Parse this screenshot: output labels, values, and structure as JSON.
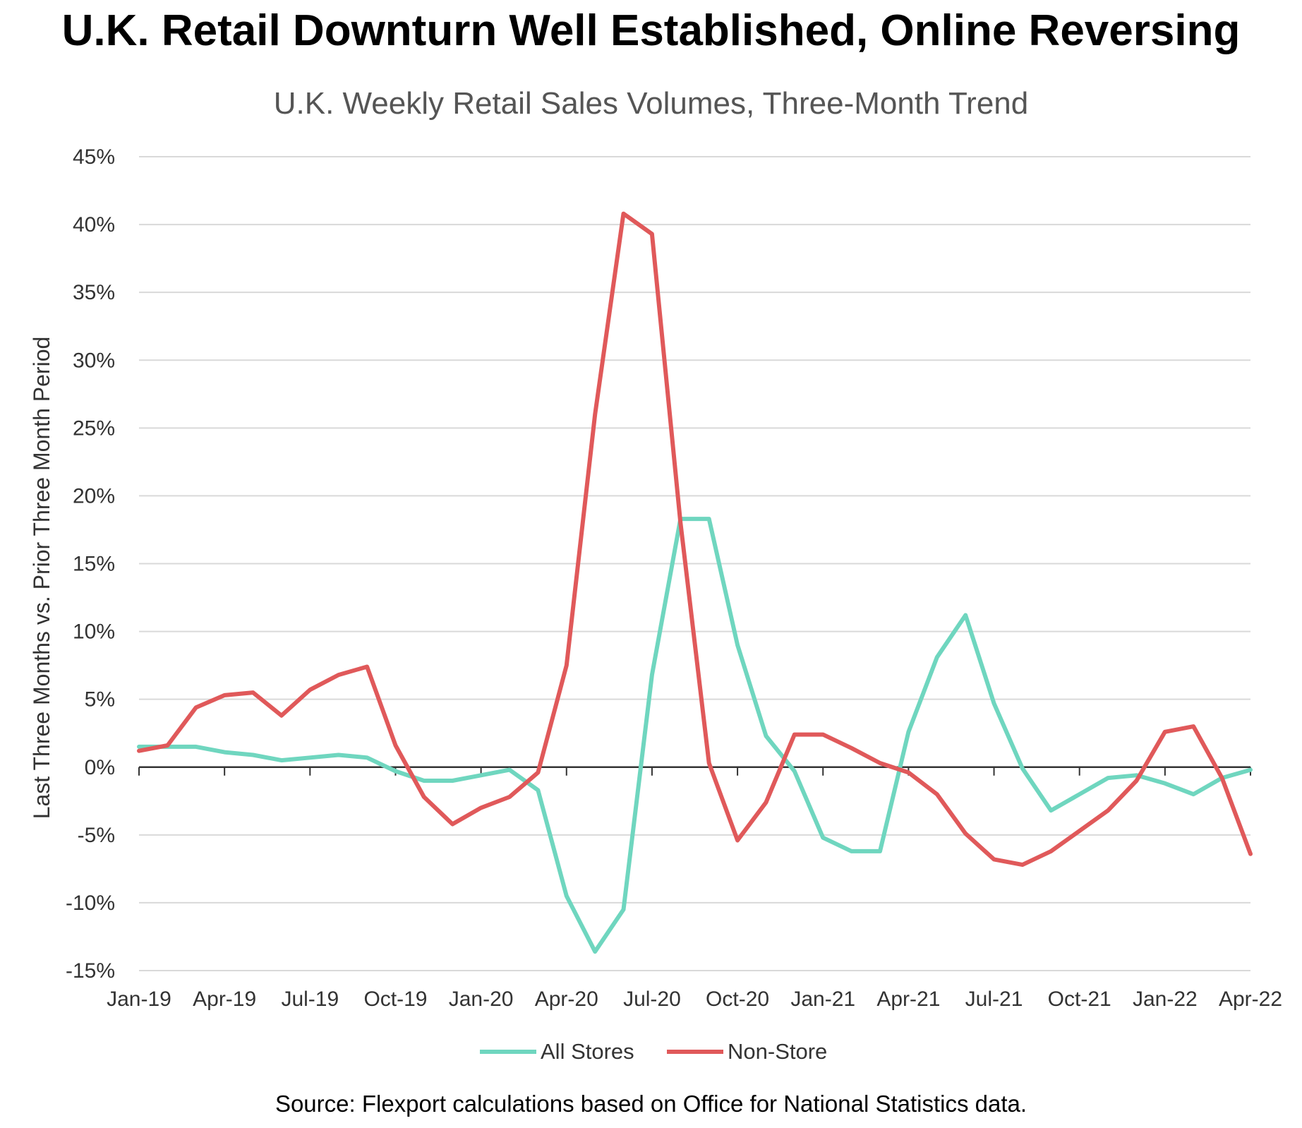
{
  "chart_data": {
    "type": "line",
    "title": "U.K. Retail Downturn Well Established, Online Reversing",
    "subtitle": "U.K. Weekly Retail Sales Volumes, Three-Month Trend",
    "xlabel": "",
    "ylabel": "Last Three Months vs. Prior Three Month Period",
    "ylim": [
      -15,
      45
    ],
    "y_ticks": [
      -15,
      -10,
      -5,
      0,
      5,
      10,
      15,
      20,
      25,
      30,
      35,
      40,
      45
    ],
    "y_tick_labels": [
      "-15%",
      "-10%",
      "-5%",
      "0%",
      "5%",
      "10%",
      "15%",
      "20%",
      "25%",
      "30%",
      "35%",
      "40%",
      "45%"
    ],
    "x_tick_labels": [
      "Jan-19",
      "Apr-19",
      "Jul-19",
      "Oct-19",
      "Jan-20",
      "Apr-20",
      "Jul-20",
      "Oct-20",
      "Jan-21",
      "Apr-21",
      "Jul-21",
      "Oct-21",
      "Jan-22",
      "Apr-22"
    ],
    "grid": true,
    "legend_position": "bottom-center",
    "series": [
      {
        "name": "All Stores",
        "color": "#6fd6bf",
        "values": [
          1.5,
          1.5,
          1.5,
          1.1,
          0.9,
          0.5,
          0.7,
          0.9,
          0.7,
          -0.3,
          -1.0,
          -1.0,
          -0.6,
          -0.2,
          -1.7,
          -9.5,
          -13.6,
          -10.5,
          6.8,
          18.3,
          18.3,
          9.0,
          2.3,
          -0.3,
          -5.2,
          -6.2,
          -6.2,
          2.6,
          8.1,
          11.2,
          4.7,
          -0.1,
          -3.2,
          -2.0,
          -0.8,
          -0.6,
          -1.2,
          -2.0,
          -0.8,
          -0.2
        ]
      },
      {
        "name": "Non-Store",
        "color": "#e0595a",
        "values": [
          1.2,
          1.6,
          4.4,
          5.3,
          5.5,
          3.8,
          5.7,
          6.8,
          7.4,
          1.6,
          -2.2,
          -4.2,
          -3.0,
          -2.2,
          -0.4,
          7.5,
          26.0,
          40.8,
          39.3,
          18.0,
          0.3,
          -5.4,
          -2.6,
          2.4,
          2.4,
          1.4,
          0.3,
          -0.4,
          -2.0,
          -4.9,
          -6.8,
          -7.2,
          -6.2,
          -4.7,
          -3.2,
          -1.0,
          2.6,
          3.0,
          -0.8,
          -6.4
        ]
      }
    ]
  },
  "source": "Source: Flexport calculations based on Office for National Statistics data."
}
